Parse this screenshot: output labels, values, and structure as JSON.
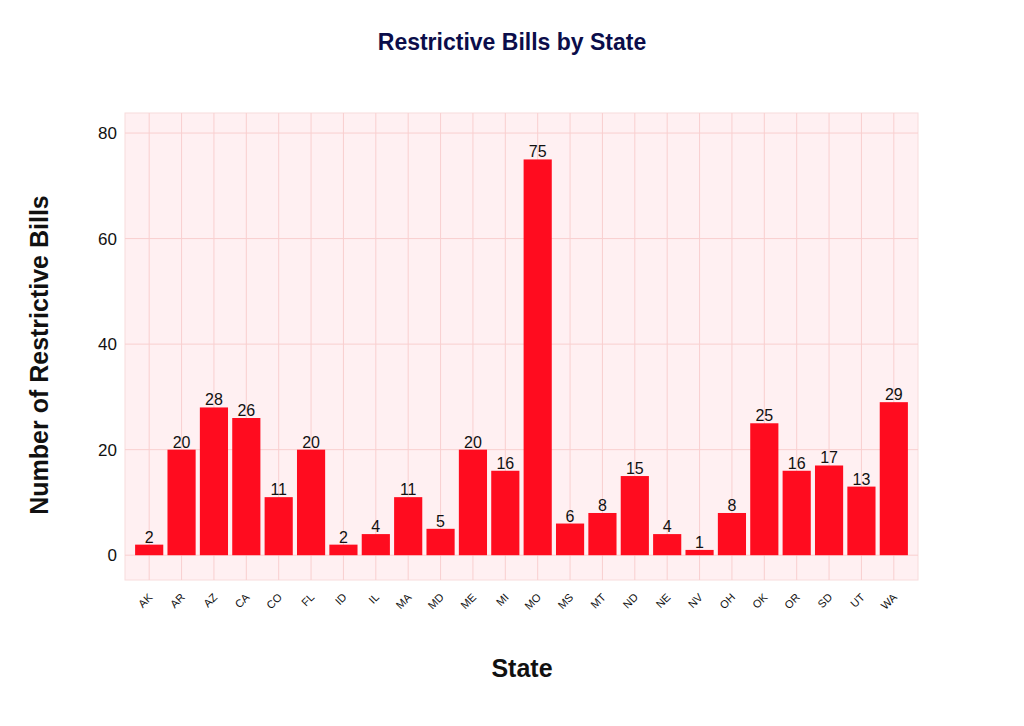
{
  "chart_data": {
    "type": "bar",
    "title": "Restrictive Bills by State",
    "x_label": "State",
    "y_label": "Number of Restrictive Bills",
    "categories": [
      "AK",
      "AR",
      "AZ",
      "CA",
      "CO",
      "FL",
      "ID",
      "IL",
      "MA",
      "MD",
      "ME",
      "MI",
      "MO",
      "MS",
      "MT",
      "ND",
      "NE",
      "NV",
      "OH",
      "OK",
      "OR",
      "SD",
      "UT",
      "WA"
    ],
    "values": [
      2,
      20,
      28,
      26,
      11,
      20,
      2,
      4,
      11,
      5,
      20,
      16,
      75,
      6,
      8,
      15,
      4,
      1,
      8,
      25,
      16,
      17,
      13,
      29
    ],
    "color": "#ff0c1f",
    "ylim": [
      -4.7,
      83.8
    ],
    "yticks": [
      0,
      20,
      40,
      60,
      80
    ],
    "grid": true,
    "data_labels": true
  }
}
